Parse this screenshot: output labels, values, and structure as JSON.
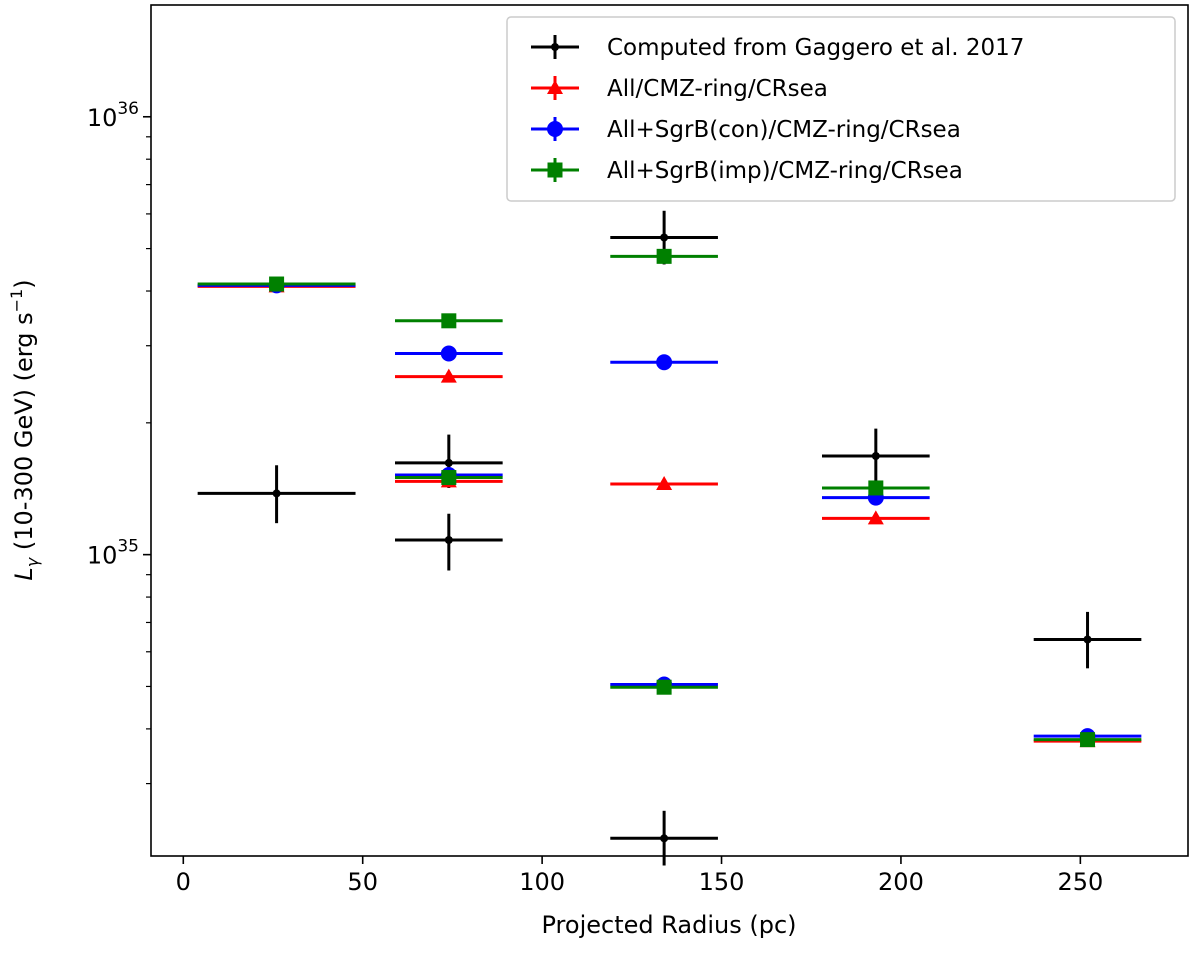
{
  "chart_data": {
    "type": "scatter",
    "title": "",
    "xlabel": "Projected Radius (pc)",
    "ylabel_main": "L",
    "ylabel_sub": "γ",
    "ylabel_rest": " (10-300 GeV) (erg s",
    "ylabel_sup": "−1",
    "ylabel_close": ")",
    "xlim": [
      -9,
      280
    ],
    "ylim": [
      2.05e+34,
      1.8e+36
    ],
    "yscale": "log",
    "xticks": [
      0,
      50,
      100,
      150,
      200,
      250
    ],
    "ytick_labels": [
      {
        "value": 1e+35,
        "base": "10",
        "exp": "35"
      },
      {
        "value": 1e+36,
        "base": "10",
        "exp": "36"
      }
    ],
    "legend_position": "upper right",
    "series": [
      {
        "name": "Computed from Gaggero et al. 2017",
        "color": "#000000",
        "marker": "point",
        "points": [
          {
            "x": 26,
            "xerr": 22,
            "y": 1.38e+35,
            "ylo": 1.18e+35,
            "yhi": 1.6e+35
          },
          {
            "x": 74,
            "xerr": 15,
            "y": 1.62e+35,
            "ylo": 1.42e+35,
            "yhi": 1.88e+35
          },
          {
            "x": 74,
            "xerr": 15,
            "y": 1.08e+35,
            "ylo": 9.2e+34,
            "yhi": 1.24e+35
          },
          {
            "x": 134,
            "xerr": 15,
            "y": 5.3e+35,
            "ylo": 4.6e+35,
            "yhi": 6.1e+35
          },
          {
            "x": 134,
            "xerr": 15,
            "y": 2.25e+34,
            "ylo": 1.95e+34,
            "yhi": 2.6e+34
          },
          {
            "x": 193,
            "xerr": 15,
            "y": 1.68e+35,
            "ylo": 1.46e+35,
            "yhi": 1.94e+35
          },
          {
            "x": 252,
            "xerr": 15,
            "y": 6.4e+34,
            "ylo": 5.5e+34,
            "yhi": 7.4e+34
          }
        ]
      },
      {
        "name": "All/CMZ-ring/CRsea",
        "color": "#ff0000",
        "marker": "triangle",
        "points": [
          {
            "x": 26,
            "xerr": 22,
            "y": 4.1e+35
          },
          {
            "x": 74,
            "xerr": 15,
            "y": 2.55e+35
          },
          {
            "x": 74,
            "xerr": 15,
            "y": 1.47e+35
          },
          {
            "x": 134,
            "xerr": 15,
            "y": 1.45e+35
          },
          {
            "x": 193,
            "xerr": 15,
            "y": 1.21e+35
          },
          {
            "x": 252,
            "xerr": 15,
            "y": 3.75e+34
          }
        ]
      },
      {
        "name": "All+SgrB(con)/CMZ-ring/CRsea",
        "color": "#0000ff",
        "marker": "circle",
        "points": [
          {
            "x": 26,
            "xerr": 22,
            "y": 4.12e+35
          },
          {
            "x": 74,
            "xerr": 15,
            "y": 2.88e+35
          },
          {
            "x": 74,
            "xerr": 15,
            "y": 1.52e+35
          },
          {
            "x": 134,
            "xerr": 15,
            "y": 2.75e+35
          },
          {
            "x": 134,
            "xerr": 15,
            "y": 5.05e+34
          },
          {
            "x": 193,
            "xerr": 15,
            "y": 1.35e+35
          },
          {
            "x": 252,
            "xerr": 15,
            "y": 3.85e+34
          }
        ]
      },
      {
        "name": "All+SgrB(imp)/CMZ-ring/CRsea",
        "color": "#008000",
        "marker": "square",
        "points": [
          {
            "x": 26,
            "xerr": 22,
            "y": 4.15e+35
          },
          {
            "x": 74,
            "xerr": 15,
            "y": 3.42e+35
          },
          {
            "x": 74,
            "xerr": 15,
            "y": 1.5e+35
          },
          {
            "x": 134,
            "xerr": 15,
            "y": 4.8e+35
          },
          {
            "x": 134,
            "xerr": 15,
            "y": 4.98e+34
          },
          {
            "x": 193,
            "xerr": 15,
            "y": 1.42e+35
          },
          {
            "x": 252,
            "xerr": 15,
            "y": 3.78e+34
          }
        ]
      }
    ]
  }
}
